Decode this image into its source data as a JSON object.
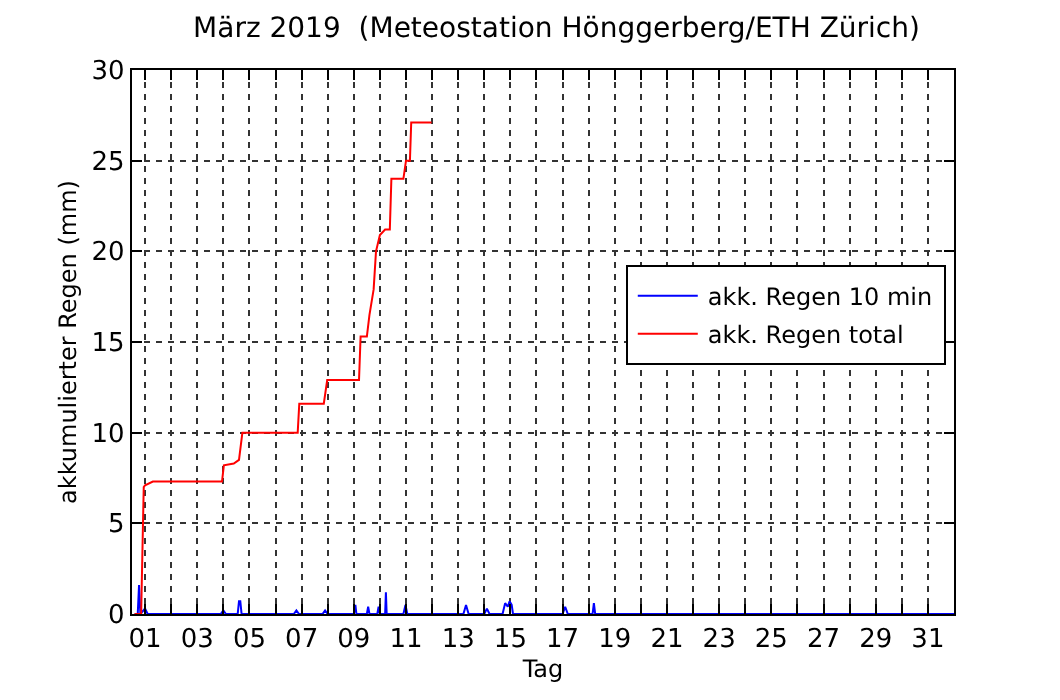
{
  "chart_data": {
    "type": "line",
    "title": "März 2019  (Meteostation Hönggerberg/ETH Zürich)",
    "xlabel": "Tag",
    "ylabel": "akkumulierter Regen (mm)",
    "xlim": [
      0.5,
      32
    ],
    "ylim": [
      0,
      30
    ],
    "xticks": [
      {
        "value": 1,
        "label": "01"
      },
      {
        "value": 2,
        "label": null
      },
      {
        "value": 3,
        "label": "03"
      },
      {
        "value": 4,
        "label": null
      },
      {
        "value": 5,
        "label": "05"
      },
      {
        "value": 6,
        "label": null
      },
      {
        "value": 7,
        "label": "07"
      },
      {
        "value": 8,
        "label": null
      },
      {
        "value": 9,
        "label": "09"
      },
      {
        "value": 10,
        "label": null
      },
      {
        "value": 11,
        "label": "11"
      },
      {
        "value": 12,
        "label": null
      },
      {
        "value": 13,
        "label": "13"
      },
      {
        "value": 14,
        "label": null
      },
      {
        "value": 15,
        "label": "15"
      },
      {
        "value": 16,
        "label": null
      },
      {
        "value": 17,
        "label": "17"
      },
      {
        "value": 18,
        "label": null
      },
      {
        "value": 19,
        "label": "19"
      },
      {
        "value": 20,
        "label": null
      },
      {
        "value": 21,
        "label": "21"
      },
      {
        "value": 22,
        "label": null
      },
      {
        "value": 23,
        "label": "23"
      },
      {
        "value": 24,
        "label": null
      },
      {
        "value": 25,
        "label": "25"
      },
      {
        "value": 26,
        "label": null
      },
      {
        "value": 27,
        "label": "27"
      },
      {
        "value": 28,
        "label": null
      },
      {
        "value": 29,
        "label": "29"
      },
      {
        "value": 30,
        "label": null
      },
      {
        "value": 31,
        "label": "31"
      }
    ],
    "yticks": [
      0,
      5,
      10,
      15,
      20,
      25,
      30
    ],
    "grid": true,
    "legend": "right",
    "line_style": "solid",
    "series": [
      {
        "name": "akk. Regen 10 min",
        "color": "#0000ff",
        "x": [
          0.6,
          0.72,
          0.77,
          0.82,
          1.0,
          1.1,
          1.2,
          3.9,
          4.0,
          4.1,
          4.55,
          4.6,
          4.65,
          4.7,
          6.7,
          6.8,
          6.9,
          7.8,
          7.9,
          8.0,
          9.0,
          9.06,
          9.1,
          9.5,
          9.55,
          9.6,
          9.9,
          9.95,
          10.0,
          10.2,
          10.23,
          10.26,
          10.9,
          10.98,
          11.05,
          13.2,
          13.3,
          13.4,
          14.0,
          14.1,
          14.2,
          14.7,
          14.8,
          14.9,
          14.97,
          15.05,
          15.1,
          17.0,
          17.1,
          17.2,
          18.15,
          18.2,
          18.25,
          32.0
        ],
        "values": [
          0,
          0,
          1.6,
          0,
          0.3,
          0,
          0,
          0,
          0.2,
          0,
          0,
          0.7,
          0.7,
          0,
          0,
          0.2,
          0,
          0,
          0.2,
          0,
          0,
          0.5,
          0,
          0,
          0.4,
          0,
          0,
          0.4,
          0,
          0,
          1.2,
          0,
          0,
          0.5,
          0,
          0,
          0.5,
          0,
          0,
          0.3,
          0,
          0,
          0.6,
          0.4,
          0.7,
          0.5,
          0,
          0,
          0.4,
          0,
          0,
          0.6,
          0,
          0
        ]
      },
      {
        "name": "akk. Regen total",
        "color": "#ff0000",
        "x": [
          0.6,
          0.85,
          0.95,
          1.0,
          1.3,
          3.95,
          4.02,
          4.4,
          4.6,
          4.73,
          6.85,
          6.91,
          7.85,
          7.98,
          9.2,
          9.26,
          9.5,
          9.6,
          9.76,
          9.85,
          10.0,
          10.2,
          10.38,
          10.44,
          10.9,
          11.0,
          11.15,
          11.2,
          11.98
        ],
        "values": [
          0,
          0,
          7.0,
          7.1,
          7.3,
          7.3,
          8.2,
          8.3,
          8.5,
          10.0,
          10.0,
          11.6,
          11.6,
          12.9,
          12.9,
          15.3,
          15.3,
          16.5,
          17.9,
          20.0,
          20.9,
          21.2,
          21.2,
          24.0,
          24.0,
          25.0,
          25.0,
          27.1,
          27.1
        ]
      }
    ]
  }
}
